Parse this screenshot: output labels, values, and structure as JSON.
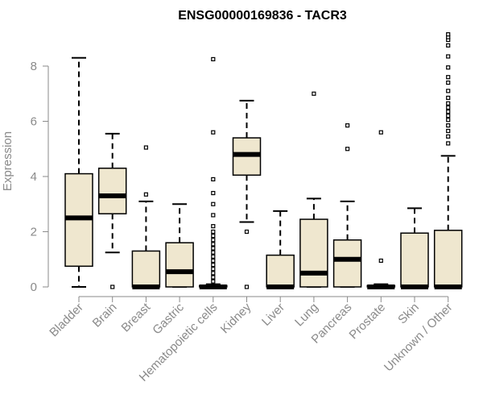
{
  "chart_data": {
    "type": "boxplot",
    "title": "ENSG00000169836 - TACR3",
    "xlabel": "",
    "ylabel": "Expression",
    "ylim": [
      0,
      9.2
    ],
    "yticks": [
      0,
      2,
      4,
      6,
      8
    ],
    "grid": false,
    "legend": "none",
    "colors": {
      "box_fill": "#efe7cf",
      "stroke": "#000000",
      "label": "#8a8a8a",
      "title": "#000000"
    },
    "categories": [
      "Bladder",
      "Brain",
      "Breast",
      "Gastric",
      "Hematopoietic cells",
      "Kidney",
      "Liver",
      "Lung",
      "Pancreas",
      "Prostate",
      "Skin",
      "Unknown / Other"
    ],
    "boxes": [
      {
        "category": "Bladder",
        "whisker_low": 0.0,
        "q1": 0.75,
        "median": 2.5,
        "q3": 4.1,
        "whisker_high": 8.3,
        "outliers": []
      },
      {
        "category": "Brain",
        "whisker_low": 1.25,
        "q1": 2.65,
        "median": 3.3,
        "q3": 4.3,
        "whisker_high": 5.55,
        "outliers": [
          0.0
        ]
      },
      {
        "category": "Breast",
        "whisker_low": 0.0,
        "q1": 0.0,
        "median": 0.0,
        "q3": 1.3,
        "whisker_high": 3.1,
        "outliers": [
          3.35,
          5.05
        ]
      },
      {
        "category": "Gastric",
        "whisker_low": 0.0,
        "q1": 0.0,
        "median": 0.55,
        "q3": 1.6,
        "whisker_high": 3.0,
        "outliers": []
      },
      {
        "category": "Hematopoietic cells",
        "whisker_low": 0.0,
        "q1": 0.0,
        "median": 0.0,
        "q3": 0.05,
        "whisker_high": 0.1,
        "outliers": [
          0.2,
          0.35,
          0.5,
          0.65,
          0.8,
          0.95,
          1.1,
          1.25,
          1.4,
          1.55,
          1.7,
          1.85,
          2.0,
          2.2,
          2.6,
          3.0,
          3.4,
          3.9,
          5.6,
          8.25
        ]
      },
      {
        "category": "Kidney",
        "whisker_low": 2.35,
        "q1": 4.05,
        "median": 4.8,
        "q3": 5.4,
        "whisker_high": 6.75,
        "outliers": [
          0.0,
          2.0
        ]
      },
      {
        "category": "Liver",
        "whisker_low": 0.0,
        "q1": 0.0,
        "median": 0.0,
        "q3": 1.15,
        "whisker_high": 2.75,
        "outliers": []
      },
      {
        "category": "Lung",
        "whisker_low": 0.0,
        "q1": 0.0,
        "median": 0.5,
        "q3": 2.45,
        "whisker_high": 3.2,
        "outliers": [
          7.0
        ]
      },
      {
        "category": "Pancreas",
        "whisker_low": 0.0,
        "q1": 0.0,
        "median": 1.0,
        "q3": 1.7,
        "whisker_high": 3.1,
        "outliers": [
          5.0,
          5.85
        ]
      },
      {
        "category": "Prostate",
        "whisker_low": 0.0,
        "q1": 0.0,
        "median": 0.0,
        "q3": 0.05,
        "whisker_high": 0.1,
        "outliers": [
          0.95,
          5.6
        ]
      },
      {
        "category": "Skin",
        "whisker_low": 0.0,
        "q1": 0.0,
        "median": 0.0,
        "q3": 1.95,
        "whisker_high": 2.85,
        "outliers": []
      },
      {
        "category": "Unknown / Other",
        "whisker_low": 0.0,
        "q1": 0.0,
        "median": 0.0,
        "q3": 2.05,
        "whisker_high": 4.75,
        "outliers": [
          5.2,
          5.45,
          5.65,
          5.85,
          6.05,
          6.2,
          6.35,
          6.5,
          6.65,
          6.85,
          7.1,
          7.4,
          7.6,
          7.95,
          8.35,
          8.75,
          8.95,
          9.05,
          9.15
        ]
      }
    ]
  }
}
